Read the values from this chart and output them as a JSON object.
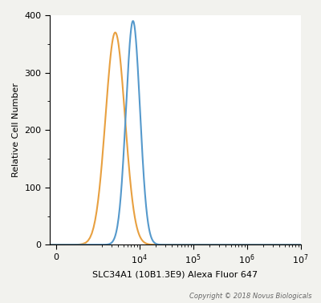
{
  "xlabel": "SLC34A1 (10B1.3E9) Alexa Fluor 647",
  "ylabel": "Relative Cell Number",
  "copyright": "Copyright © 2018 Novus Biologicals",
  "ylim": [
    0,
    400
  ],
  "yticks": [
    0,
    100,
    200,
    300,
    400
  ],
  "orange_color": "#E8A040",
  "blue_color": "#5599CC",
  "orange_peak_log": 3.55,
  "orange_peak_y": 370,
  "orange_sigma": 0.18,
  "blue_peak_log": 3.88,
  "blue_peak_y": 390,
  "blue_sigma": 0.13,
  "background_color": "#F2F2EE",
  "axes_background": "#FFFFFF",
  "linthresh": 1000,
  "xlim_log": [
    -100,
    10000000.0
  ]
}
